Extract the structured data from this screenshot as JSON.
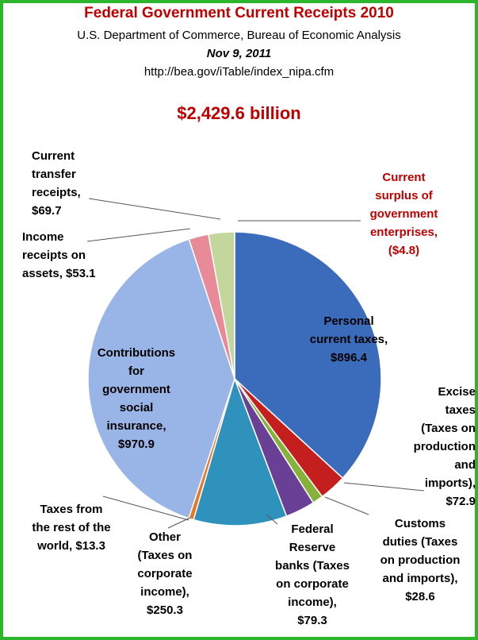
{
  "header": {
    "title": "Federal Government Current Receipts 2010",
    "subtitle": "U.S. Department of Commerce, Bureau of Economic Analysis",
    "date": "Nov 9, 2011",
    "url": "http://bea.gov/iTable/index_nipa.cfm",
    "total": "$2,429.6 billion"
  },
  "chart_data": {
    "type": "pie",
    "title": "Federal Government Current Receipts 2010",
    "total": 2429.6,
    "unit": "billion",
    "slices": [
      {
        "name": "Personal current taxes",
        "value": 896.4,
        "color": "#3a6cbb",
        "label_lines": [
          "Personal",
          "current taxes,",
          "$896.4"
        ]
      },
      {
        "name": "Excise taxes (Taxes on production and imports)",
        "value": 72.9,
        "color": "#c51e1e",
        "label_lines": [
          "Excise",
          "taxes",
          "(Taxes on",
          "production",
          "and",
          "imports),",
          "$72.9"
        ]
      },
      {
        "name": "Customs duties (Taxes on production and imports)",
        "value": 28.6,
        "color": "#86b23a",
        "label_lines": [
          "Customs",
          "duties (Taxes",
          "on production",
          "and imports),",
          "$28.6"
        ]
      },
      {
        "name": "Federal Reserve banks (Taxes on corporate income)",
        "value": 79.3,
        "color": "#6a3f96",
        "label_lines": [
          "Federal",
          "Reserve",
          "banks (Taxes",
          "on corporate",
          "income),",
          "$79.3"
        ]
      },
      {
        "name": "Other (Taxes on corporate income)",
        "value": 250.3,
        "color": "#2f92bd",
        "label_lines": [
          "Other",
          "(Taxes on",
          "corporate",
          "income),",
          "$250.3"
        ]
      },
      {
        "name": "Taxes from the rest of the world",
        "value": 13.3,
        "color": "#e87722",
        "label_lines": [
          "Taxes from",
          "the rest of the",
          "world, $13.3"
        ]
      },
      {
        "name": "Contributions for government social insurance",
        "value": 970.9,
        "color": "#99b4e6",
        "label_lines": [
          "Contributions",
          "for",
          "government",
          "social",
          "insurance,",
          "$970.9"
        ]
      },
      {
        "name": "Income receipts on assets",
        "value": 53.1,
        "color": "#e98a98",
        "label_lines": [
          "Income",
          "receipts on",
          "assets, $53.1"
        ]
      },
      {
        "name": "Current transfer receipts",
        "value": 69.7,
        "color": "#c3d69b",
        "label_lines": [
          "Current",
          "transfer",
          "receipts,",
          "$69.7"
        ]
      },
      {
        "name": "Current surplus of government enterprises",
        "value": -4.8,
        "color": "#c00000",
        "label_lines": [
          "Current",
          "surplus of",
          "government",
          "enterprises,",
          "($4.8)"
        ]
      }
    ],
    "legend": "none"
  }
}
